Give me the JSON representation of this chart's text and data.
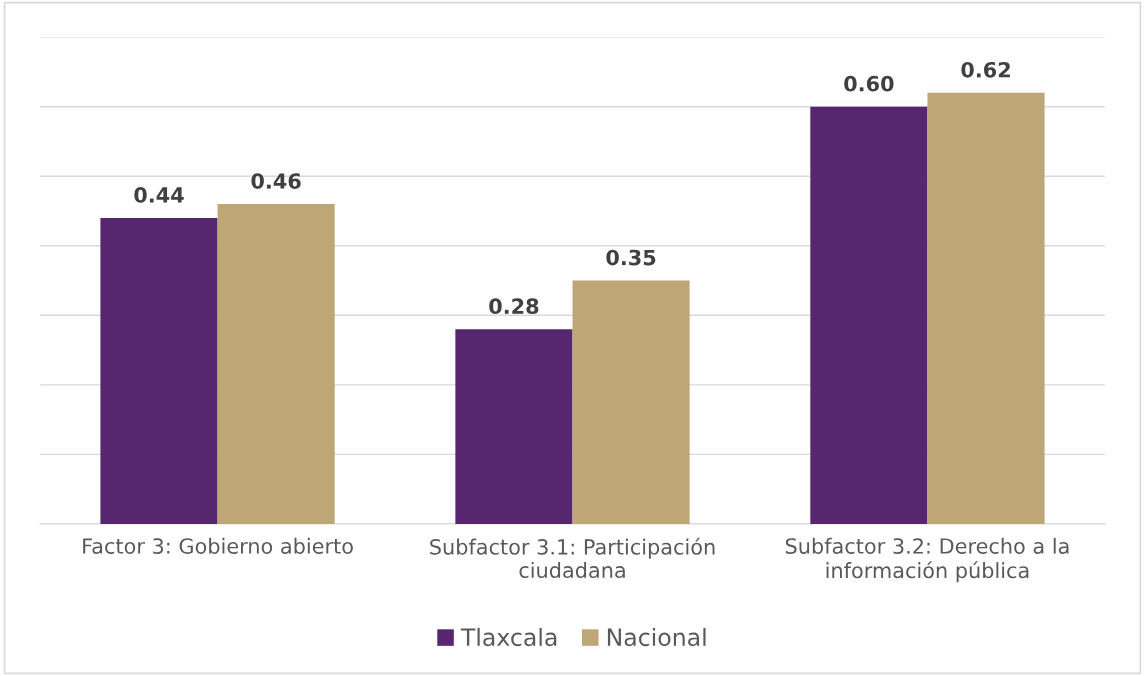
{
  "chart_data": {
    "type": "bar",
    "categories": [
      "Factor 3: Gobierno abierto",
      "Subfactor 3.1: Participación ciudadana",
      "Subfactor 3.2: Derecho a la información pública"
    ],
    "series": [
      {
        "name": "Tlaxcala",
        "color": "#56276e",
        "values": [
          0.44,
          0.28,
          0.6
        ],
        "value_labels": [
          "0.44",
          "0.28",
          "0.60"
        ]
      },
      {
        "name": "Nacional",
        "color": "#bfa677",
        "values": [
          0.46,
          0.35,
          0.62
        ],
        "value_labels": [
          "0.46",
          "0.35",
          "0.62"
        ]
      }
    ],
    "ylim": [
      0,
      0.7
    ],
    "yticks": [
      {
        "value": 0,
        "label": null
      },
      {
        "value": 0.1,
        "label": null
      },
      {
        "value": 0.2,
        "label": null
      },
      {
        "value": 0.3,
        "label": null
      },
      {
        "value": 0.4,
        "label": null
      },
      {
        "value": 0.5,
        "label": null
      },
      {
        "value": 0.6,
        "label": null
      },
      {
        "value": 0.7,
        "label": null
      }
    ],
    "tick_labels": "x",
    "grid": "y",
    "legend": "bottom"
  }
}
